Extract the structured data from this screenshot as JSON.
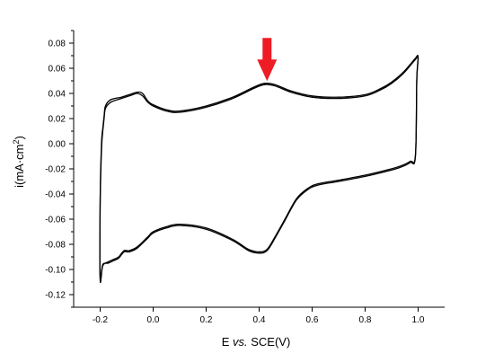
{
  "chart_data": {
    "type": "line",
    "title": "",
    "xlabel": {
      "pre": "E ",
      "italic": "vs.",
      "post": " SCE(V)"
    },
    "ylabel": {
      "pre": "i(mA",
      "mid": "·cm",
      "sup": "2",
      "post": ")"
    },
    "xlim": [
      -0.3,
      1.1
    ],
    "ylim": [
      -0.13,
      0.09
    ],
    "x_ticks": [
      "-0.2",
      "0.0",
      "0.2",
      "0.4",
      "0.6",
      "0.8",
      "1.0"
    ],
    "y_ticks": [
      "0.08",
      "0.06",
      "0.04",
      "0.02",
      "0.00",
      "-0.02",
      "-0.04",
      "-0.06",
      "-0.08",
      "-0.10",
      "-0.12"
    ],
    "x_tick_values": [
      -0.2,
      0.0,
      0.2,
      0.4,
      0.6,
      0.8,
      1.0
    ],
    "y_tick_values": [
      0.08,
      0.06,
      0.04,
      0.02,
      0.0,
      -0.02,
      -0.04,
      -0.06,
      -0.08,
      -0.1,
      -0.12
    ],
    "grid": false,
    "legend": "none",
    "line_color": "#000000",
    "annotation": {
      "type": "arrow",
      "color": "#ee1c25",
      "points_at_x": 0.43,
      "points_at_y": 0.047
    },
    "series": [
      {
        "x": [
          -0.19,
          -0.185,
          -0.18,
          -0.16,
          -0.12,
          -0.09,
          -0.06,
          -0.04,
          -0.02,
          0.0,
          0.05,
          0.1,
          0.2,
          0.3,
          0.38,
          0.42,
          0.46,
          0.52,
          0.6,
          0.7,
          0.8,
          0.86,
          0.9,
          0.94,
          0.97,
          0.99,
          1.0,
          0.995,
          0.99,
          0.97,
          0.93,
          0.88,
          0.8,
          0.7,
          0.62,
          0.58,
          0.54,
          0.5,
          0.46,
          0.43,
          0.4,
          0.36,
          0.3,
          0.2,
          0.1,
          0.05,
          0.0,
          -0.02,
          -0.06,
          -0.09,
          -0.11,
          -0.13,
          -0.15,
          -0.17,
          -0.19,
          -0.2,
          -0.2,
          -0.195,
          -0.19
        ],
        "y": [
          0.01,
          0.02,
          0.028,
          0.033,
          0.036,
          0.038,
          0.04,
          0.038,
          0.033,
          0.03,
          0.026,
          0.025,
          0.029,
          0.036,
          0.044,
          0.047,
          0.046,
          0.041,
          0.037,
          0.036,
          0.038,
          0.043,
          0.048,
          0.055,
          0.062,
          0.067,
          0.068,
          0.05,
          -0.01,
          -0.015,
          -0.019,
          -0.022,
          -0.026,
          -0.03,
          -0.033,
          -0.037,
          -0.045,
          -0.06,
          -0.075,
          -0.085,
          -0.087,
          -0.085,
          -0.077,
          -0.068,
          -0.065,
          -0.067,
          -0.071,
          -0.075,
          -0.083,
          -0.086,
          -0.086,
          -0.091,
          -0.093,
          -0.095,
          -0.096,
          -0.106,
          -0.05,
          -0.005,
          0.01
        ]
      },
      {
        "x": [
          -0.19,
          -0.185,
          -0.18,
          -0.16,
          -0.12,
          -0.09,
          -0.06,
          -0.04,
          -0.02,
          0.0,
          0.05,
          0.1,
          0.2,
          0.3,
          0.38,
          0.42,
          0.46,
          0.52,
          0.6,
          0.7,
          0.8,
          0.86,
          0.9,
          0.94,
          0.97,
          0.99,
          1.0,
          0.995,
          0.99,
          0.97,
          0.93,
          0.88,
          0.8,
          0.7,
          0.62,
          0.58,
          0.54,
          0.5,
          0.46,
          0.43,
          0.4,
          0.36,
          0.3,
          0.2,
          0.1,
          0.05,
          0.0,
          -0.02,
          -0.06,
          -0.09,
          -0.11,
          -0.13,
          -0.15,
          -0.17,
          -0.19,
          -0.2,
          -0.2,
          -0.195,
          -0.19
        ],
        "y": [
          0.012,
          0.022,
          0.03,
          0.035,
          0.037,
          0.039,
          0.041,
          0.04,
          0.034,
          0.031,
          0.027,
          0.026,
          0.03,
          0.037,
          0.045,
          0.048,
          0.047,
          0.042,
          0.038,
          0.037,
          0.039,
          0.044,
          0.049,
          0.056,
          0.063,
          0.068,
          0.069,
          0.051,
          -0.009,
          -0.014,
          -0.018,
          -0.021,
          -0.025,
          -0.029,
          -0.032,
          -0.036,
          -0.044,
          -0.059,
          -0.074,
          -0.084,
          -0.086,
          -0.084,
          -0.076,
          -0.067,
          -0.064,
          -0.066,
          -0.07,
          -0.074,
          -0.082,
          -0.085,
          -0.085,
          -0.09,
          -0.092,
          -0.094,
          -0.097,
          -0.108,
          -0.045,
          0.0,
          0.012
        ]
      }
    ]
  }
}
